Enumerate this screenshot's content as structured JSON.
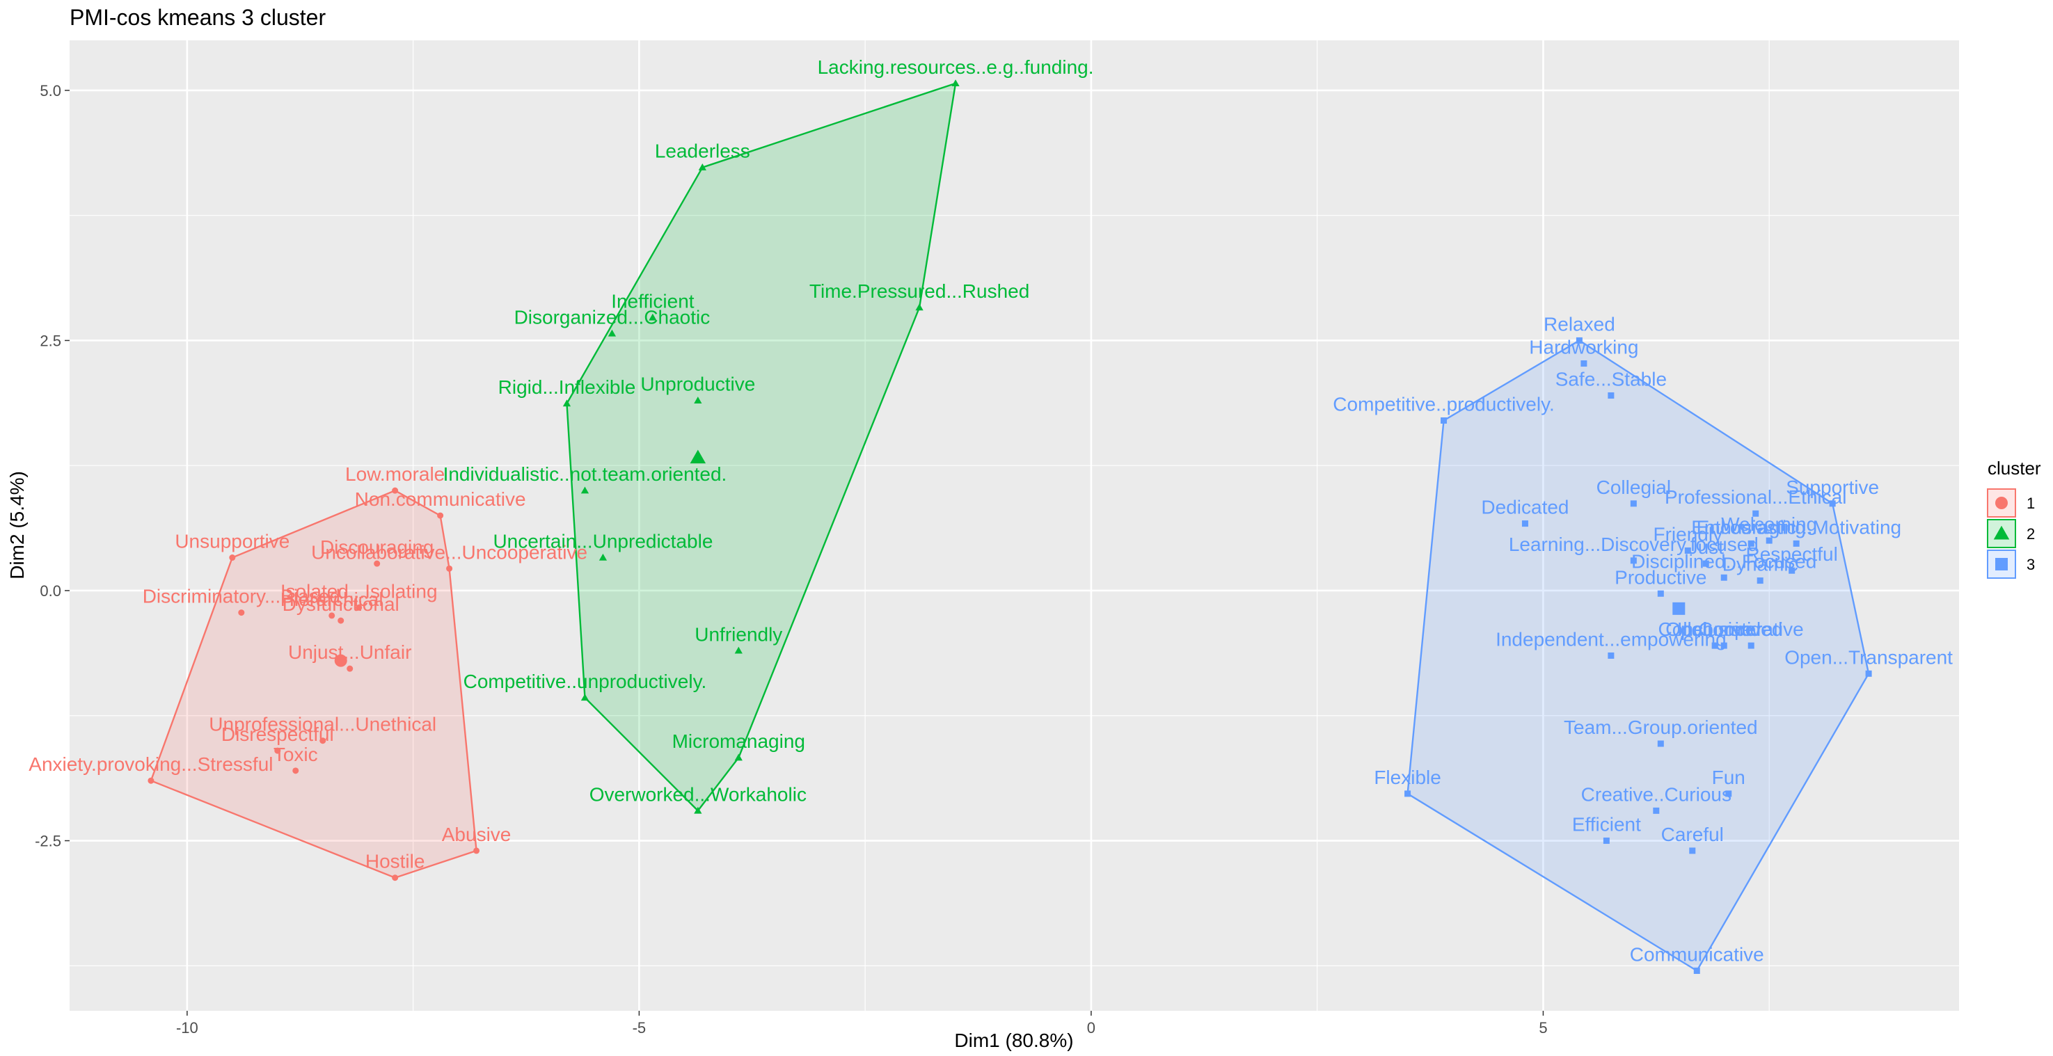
{
  "chart_data": {
    "type": "scatter",
    "title": "PMI-cos kmeans 3 cluster",
    "xlabel": "Dim1 (80.8%)",
    "ylabel": "Dim2 (5.4%)",
    "xlim": [
      -11.3,
      9.6
    ],
    "ylim": [
      -4.2,
      5.5
    ],
    "xticks": [
      -10,
      -5,
      0,
      5
    ],
    "yticks": [
      -2.5,
      0.0,
      2.5,
      5.0
    ],
    "xtick_labels": [
      "-10",
      "-5",
      "0",
      "5"
    ],
    "ytick_labels": [
      "-2.5",
      "0.0",
      "2.5",
      "5.0"
    ],
    "grid": true,
    "legend_title": "cluster",
    "legend_position": "right",
    "clusters": [
      {
        "name": "1",
        "color": "#F8766D",
        "shape": "circle",
        "center": [
          -8.3,
          -0.7
        ],
        "hull": [
          [
            -10.4,
            -1.9
          ],
          [
            -9.5,
            0.33
          ],
          [
            -7.7,
            1.0
          ],
          [
            -7.2,
            0.75
          ],
          [
            -7.1,
            0.22
          ],
          [
            -6.8,
            -2.6
          ],
          [
            -7.7,
            -2.87
          ]
        ],
        "points": [
          {
            "label": "Low.morale",
            "x": -7.7,
            "y": 1.0
          },
          {
            "label": "Non.communicative",
            "x": -7.2,
            "y": 0.75
          },
          {
            "label": "Unsupportive",
            "x": -9.5,
            "y": 0.33
          },
          {
            "label": "Discouraging",
            "x": -7.9,
            "y": 0.27
          },
          {
            "label": "Uncollaborative...Uncooperative",
            "x": -7.1,
            "y": 0.22
          },
          {
            "label": "Discriminatory...Biased",
            "x": -9.4,
            "y": -0.22
          },
          {
            "label": "Isolated...Isolating",
            "x": -8.1,
            "y": -0.17
          },
          {
            "label": "Hierarchical",
            "x": -8.4,
            "y": -0.25
          },
          {
            "label": "Dysfunctional",
            "x": -8.3,
            "y": -0.3
          },
          {
            "label": "Unjust...Unfair",
            "x": -8.2,
            "y": -0.78
          },
          {
            "label": "Unprofessional...Unethical",
            "x": -8.5,
            "y": -1.5
          },
          {
            "label": "Disrespectful",
            "x": -9.0,
            "y": -1.6
          },
          {
            "label": "Toxic",
            "x": -8.8,
            "y": -1.8
          },
          {
            "label": "Anxiety.provoking...Stressful",
            "x": -10.4,
            "y": -1.9
          },
          {
            "label": "Abusive",
            "x": -6.8,
            "y": -2.6
          },
          {
            "label": "Hostile",
            "x": -7.7,
            "y": -2.87
          }
        ]
      },
      {
        "name": "2",
        "color": "#00BA38",
        "shape": "triangle",
        "center": [
          -4.35,
          1.33
        ],
        "hull": [
          [
            -1.5,
            5.07
          ],
          [
            -4.3,
            4.23
          ],
          [
            -5.8,
            1.87
          ],
          [
            -5.6,
            -1.07
          ],
          [
            -4.35,
            -2.2
          ],
          [
            -3.9,
            -1.67
          ],
          [
            -1.9,
            2.83
          ]
        ],
        "points": [
          {
            "label": "Lacking.resources..e.g..funding.",
            "x": -1.5,
            "y": 5.07
          },
          {
            "label": "Leaderless",
            "x": -4.3,
            "y": 4.23
          },
          {
            "label": "Time.Pressured...Rushed",
            "x": -1.9,
            "y": 2.83
          },
          {
            "label": "Inefficient",
            "x": -4.85,
            "y": 2.73
          },
          {
            "label": "Disorganized...Chaotic",
            "x": -5.3,
            "y": 2.57
          },
          {
            "label": "Rigid...Inflexible",
            "x": -5.8,
            "y": 1.87
          },
          {
            "label": "Unproductive",
            "x": -4.35,
            "y": 1.9
          },
          {
            "label": "Individualistic..not.team.oriented.",
            "x": -5.6,
            "y": 1.0
          },
          {
            "label": "Uncertain...Unpredictable",
            "x": -5.4,
            "y": 0.33
          },
          {
            "label": "Unfriendly",
            "x": -3.9,
            "y": -0.6
          },
          {
            "label": "Competitive..unproductively.",
            "x": -5.6,
            "y": -1.07
          },
          {
            "label": "Micromanaging",
            "x": -3.9,
            "y": -1.67
          },
          {
            "label": "Overworked...Workaholic",
            "x": -4.35,
            "y": -2.2
          }
        ]
      },
      {
        "name": "3",
        "color": "#619CFF",
        "shape": "square",
        "center": [
          6.5,
          -0.18
        ],
        "hull": [
          [
            5.4,
            2.5
          ],
          [
            8.2,
            0.87
          ],
          [
            8.6,
            -0.83
          ],
          [
            6.7,
            -3.8
          ],
          [
            3.5,
            -2.03
          ],
          [
            3.9,
            1.7
          ]
        ],
        "points": [
          {
            "label": "Relaxed",
            "x": 5.4,
            "y": 2.5
          },
          {
            "label": "Hardworking",
            "x": 5.45,
            "y": 2.27
          },
          {
            "label": "Safe...Stable",
            "x": 5.75,
            "y": 1.95
          },
          {
            "label": "Competitive..productively.",
            "x": 3.9,
            "y": 1.7
          },
          {
            "label": "Dedicated",
            "x": 4.8,
            "y": 0.67
          },
          {
            "label": "Collegial",
            "x": 6.0,
            "y": 0.87
          },
          {
            "label": "Professional...Ethical",
            "x": 7.35,
            "y": 0.77
          },
          {
            "label": "Supportive",
            "x": 8.2,
            "y": 0.87
          },
          {
            "label": "Welcoming",
            "x": 7.5,
            "y": 0.5
          },
          {
            "label": "Encouraging",
            "x": 7.3,
            "y": 0.47
          },
          {
            "label": "Friendly",
            "x": 6.6,
            "y": 0.4
          },
          {
            "label": "Learning...Discovery.focused",
            "x": 6.0,
            "y": 0.3
          },
          {
            "label": "Enthusiastic...Motivating",
            "x": 7.8,
            "y": 0.47
          },
          {
            "label": "Just",
            "x": 6.8,
            "y": 0.27
          },
          {
            "label": "Respectful",
            "x": 7.75,
            "y": 0.2
          },
          {
            "label": "Dynamic",
            "x": 7.4,
            "y": 0.1
          },
          {
            "label": "Disciplined...Focused",
            "x": 7.0,
            "y": 0.13
          },
          {
            "label": "Productive",
            "x": 6.3,
            "y": -0.03
          },
          {
            "label": "Collaborative",
            "x": 6.9,
            "y": -0.55
          },
          {
            "label": "Inclusive",
            "x": 6.9,
            "y": -0.55
          },
          {
            "label": "Open.minded",
            "x": 7.0,
            "y": -0.55
          },
          {
            "label": "Cooperative",
            "x": 7.3,
            "y": -0.55
          },
          {
            "label": "Independent...empowering",
            "x": 5.75,
            "y": -0.65
          },
          {
            "label": "Open...Transparent",
            "x": 8.6,
            "y": -0.83
          },
          {
            "label": "Team...Group.oriented",
            "x": 6.3,
            "y": -1.53
          },
          {
            "label": "Fun",
            "x": 7.05,
            "y": -2.03
          },
          {
            "label": "Creative..Curious",
            "x": 6.25,
            "y": -2.2
          },
          {
            "label": "Flexible",
            "x": 3.5,
            "y": -2.03
          },
          {
            "label": "Efficient",
            "x": 5.7,
            "y": -2.5
          },
          {
            "label": "Careful",
            "x": 6.65,
            "y": -2.6
          },
          {
            "label": "Communicative",
            "x": 6.7,
            "y": -3.8
          }
        ]
      }
    ]
  }
}
